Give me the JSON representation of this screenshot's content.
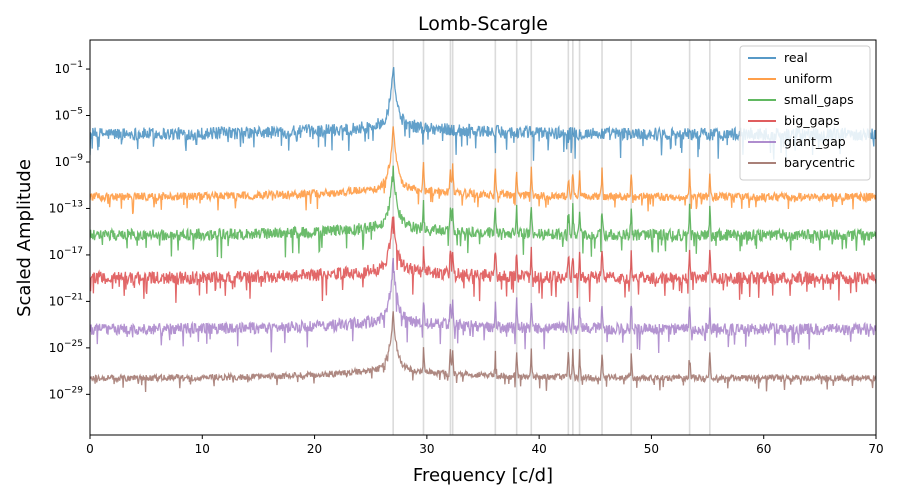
{
  "chart_data": {
    "type": "line",
    "title": "Lomb-Scargle",
    "xlabel": "Frequency [c/d]",
    "ylabel": "Scaled Amplitude",
    "xlim": [
      0,
      70
    ],
    "ylim_log10": [
      -32.5,
      1.5
    ],
    "yscale": "log",
    "x_ticks": [
      0,
      10,
      20,
      30,
      40,
      50,
      60,
      70
    ],
    "y_ticks": [
      {
        "exp": -1,
        "label": "10",
        "sup": "−1"
      },
      {
        "exp": -5,
        "label": "10",
        "sup": "−5"
      },
      {
        "exp": -9,
        "label": "10",
        "sup": "−9"
      },
      {
        "exp": -13,
        "label": "10",
        "sup": "−13"
      },
      {
        "exp": -17,
        "label": "10",
        "sup": "−17"
      },
      {
        "exp": -21,
        "label": "10",
        "sup": "−21"
      },
      {
        "exp": -25,
        "label": "10",
        "sup": "−25"
      },
      {
        "exp": -29,
        "label": "10",
        "sup": "−29"
      }
    ],
    "legend_position": "top-right",
    "reference_lines_x": [
      27.0,
      29.7,
      32.1,
      32.3,
      36.1,
      38.0,
      39.3,
      42.6,
      43.0,
      43.6,
      45.6,
      48.2,
      53.4,
      55.2
    ],
    "peak_frequency": 27.0,
    "series": [
      {
        "name": "real",
        "color": "#1f77b4",
        "base_log10": -6.6,
        "peak_log10": -0.6,
        "noise": 0.55,
        "spikes": false
      },
      {
        "name": "uniform",
        "color": "#ff7f0e",
        "base_log10": -12.0,
        "peak_log10": -6.0,
        "noise": 0.35,
        "spikes": true
      },
      {
        "name": "small_gaps",
        "color": "#2ca02c",
        "base_log10": -15.3,
        "peak_log10": -9.5,
        "noise": 0.5,
        "spikes": true
      },
      {
        "name": "big_gaps",
        "color": "#d62728",
        "base_log10": -19.0,
        "peak_log10": -13.5,
        "noise": 0.55,
        "spikes": true
      },
      {
        "name": "giant_gap",
        "color": "#9467bd",
        "base_log10": -23.4,
        "peak_log10": -17.5,
        "noise": 0.5,
        "spikes": true
      },
      {
        "name": "barycentric",
        "color": "#8c564b",
        "base_log10": -27.6,
        "peak_log10": -22.0,
        "noise": 0.28,
        "spikes": true
      }
    ]
  }
}
